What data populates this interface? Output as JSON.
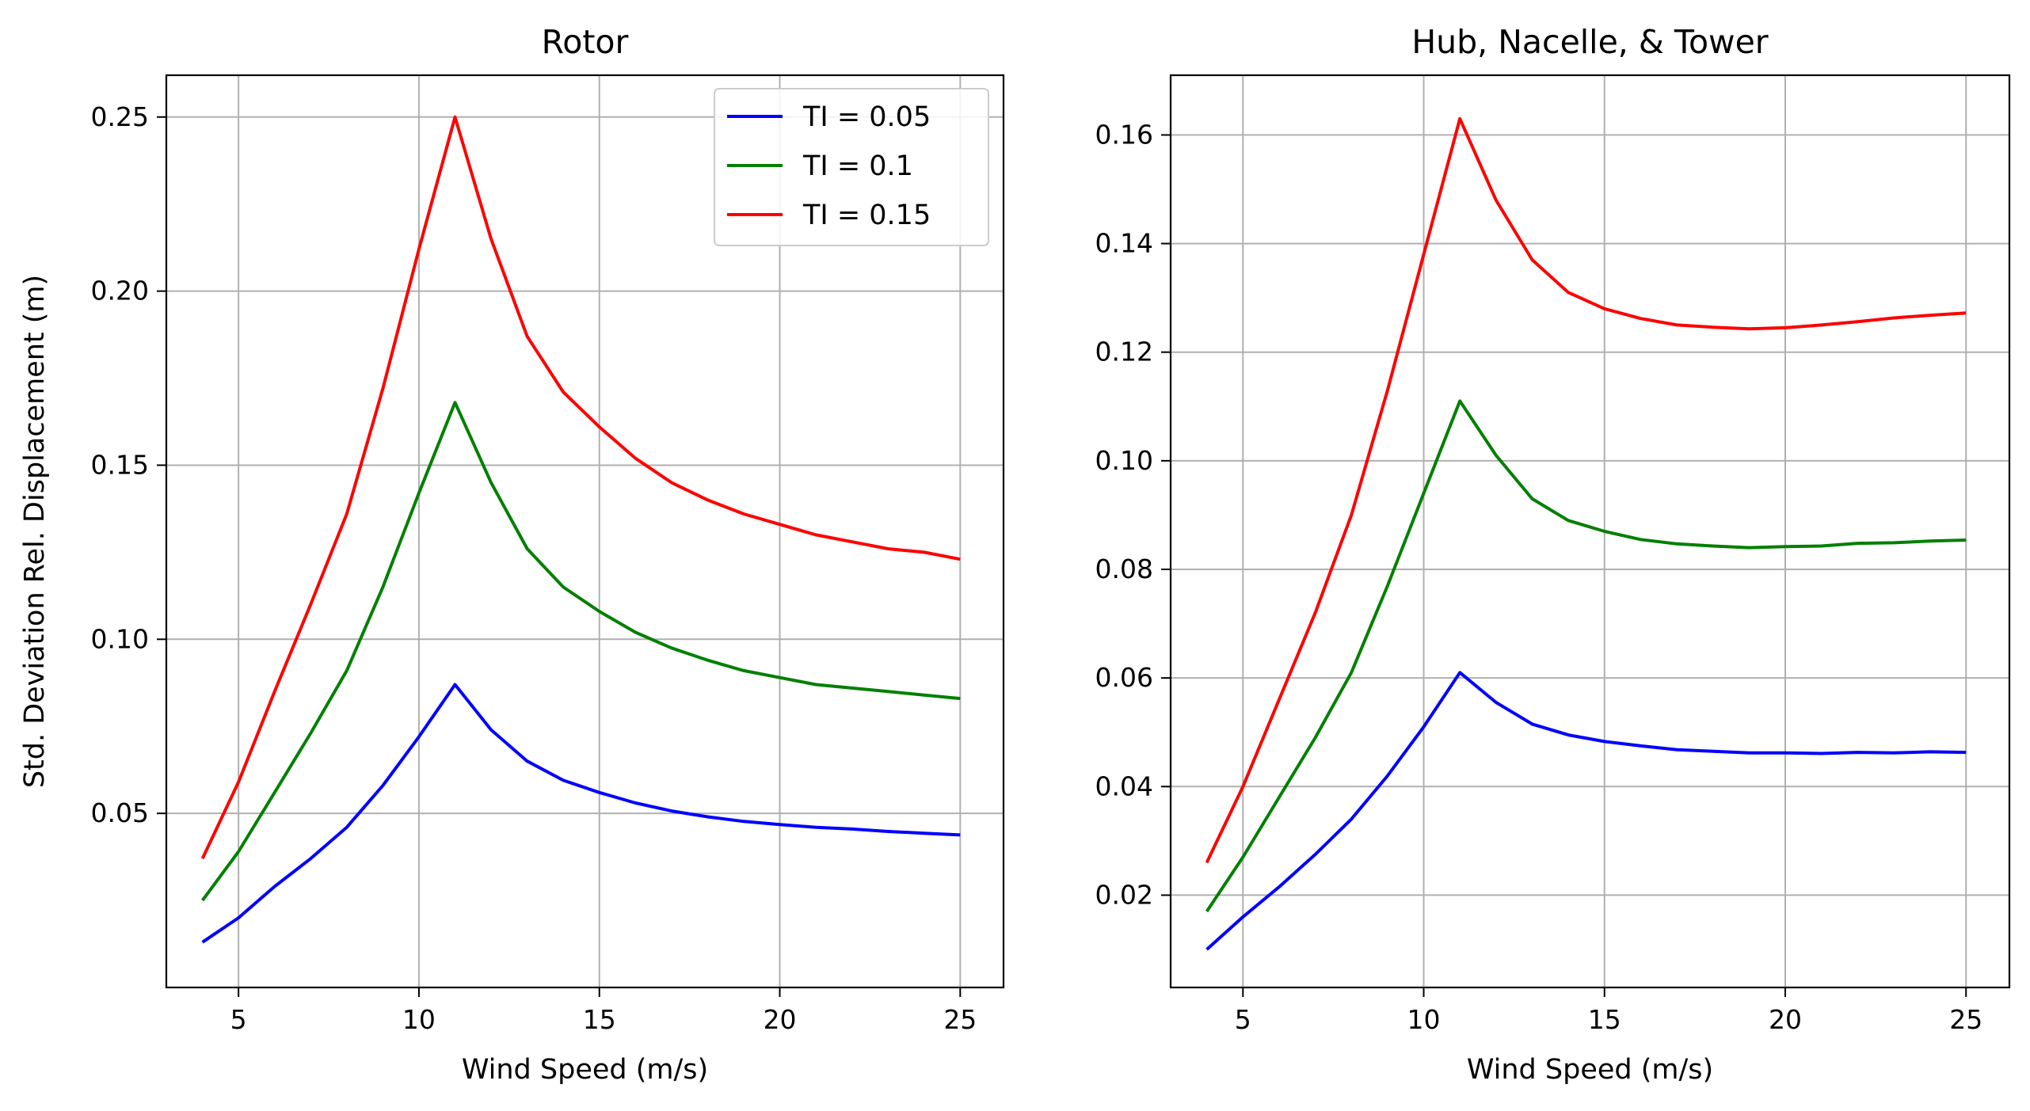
{
  "chart_data": [
    {
      "type": "line",
      "title": "Rotor",
      "xlabel": "Wind Speed (m/s)",
      "ylabel": "Std. Deviation Rel. Displacement (m)",
      "xlim": [
        3,
        26.2
      ],
      "ylim": [
        0.0,
        0.262
      ],
      "xticks": [
        5,
        10,
        15,
        20,
        25
      ],
      "yticks": [
        0.05,
        0.1,
        0.15,
        0.2,
        0.25
      ],
      "ytick_labels": [
        "0.05",
        "0.10",
        "0.15",
        "0.20",
        "0.25"
      ],
      "grid": true,
      "legend": "upper right",
      "x": [
        4,
        5,
        6,
        7,
        8,
        9,
        10,
        11,
        12,
        13,
        14,
        15,
        16,
        17,
        18,
        19,
        20,
        21,
        22,
        23,
        24,
        25
      ],
      "series": [
        {
          "name": "TI = 0.05",
          "color": "#0000ff",
          "values": [
            0.013,
            0.02,
            0.029,
            0.037,
            0.046,
            0.058,
            0.072,
            0.087,
            0.074,
            0.065,
            0.0595,
            0.056,
            0.053,
            0.0507,
            0.049,
            0.0477,
            0.0468,
            0.046,
            0.0455,
            0.0448,
            0.0443,
            0.0438
          ]
        },
        {
          "name": "TI = 0.1",
          "color": "#008000",
          "values": [
            0.025,
            0.039,
            0.056,
            0.073,
            0.091,
            0.115,
            0.142,
            0.168,
            0.145,
            0.126,
            0.115,
            0.108,
            0.102,
            0.0975,
            0.094,
            0.091,
            0.089,
            0.087,
            0.086,
            0.085,
            0.084,
            0.083
          ]
        },
        {
          "name": "TI = 0.15",
          "color": "#ff0000",
          "values": [
            0.037,
            0.059,
            0.085,
            0.11,
            0.136,
            0.172,
            0.212,
            0.25,
            0.215,
            0.187,
            0.171,
            0.161,
            0.152,
            0.145,
            0.14,
            0.136,
            0.133,
            0.13,
            0.128,
            0.126,
            0.125,
            0.123
          ]
        }
      ]
    },
    {
      "type": "line",
      "title": "Hub, Nacelle, & Tower",
      "xlabel": "Wind Speed (m/s)",
      "ylabel": "",
      "xlim": [
        3,
        26.2
      ],
      "ylim": [
        0.003,
        0.171
      ],
      "xticks": [
        5,
        10,
        15,
        20,
        25
      ],
      "yticks": [
        0.02,
        0.04,
        0.06,
        0.08,
        0.1,
        0.12,
        0.14,
        0.16
      ],
      "ytick_labels": [
        "0.02",
        "0.04",
        "0.06",
        "0.08",
        "0.10",
        "0.12",
        "0.14",
        "0.16"
      ],
      "grid": true,
      "x": [
        4,
        5,
        6,
        7,
        8,
        9,
        10,
        11,
        12,
        13,
        14,
        15,
        16,
        17,
        18,
        19,
        20,
        21,
        22,
        23,
        24,
        25
      ],
      "series": [
        {
          "name": "TI = 0.05",
          "color": "#0000ff",
          "values": [
            0.01,
            0.016,
            0.0215,
            0.0275,
            0.034,
            0.042,
            0.051,
            0.061,
            0.0555,
            0.0515,
            0.0495,
            0.0483,
            0.0475,
            0.0468,
            0.0465,
            0.0462,
            0.0462,
            0.0461,
            0.0463,
            0.0462,
            0.0464,
            0.0463
          ]
        },
        {
          "name": "TI = 0.1",
          "color": "#008000",
          "values": [
            0.017,
            0.027,
            0.038,
            0.049,
            0.061,
            0.077,
            0.094,
            0.111,
            0.101,
            0.093,
            0.089,
            0.087,
            0.0855,
            0.0847,
            0.0843,
            0.084,
            0.0842,
            0.0843,
            0.0848,
            0.0849,
            0.0852,
            0.0854
          ]
        },
        {
          "name": "TI = 0.15",
          "color": "#ff0000",
          "values": [
            0.026,
            0.04,
            0.056,
            0.072,
            0.09,
            0.113,
            0.138,
            0.163,
            0.148,
            0.137,
            0.131,
            0.128,
            0.1262,
            0.125,
            0.1246,
            0.1243,
            0.1245,
            0.125,
            0.1256,
            0.1263,
            0.1268,
            0.1272
          ]
        }
      ]
    }
  ]
}
